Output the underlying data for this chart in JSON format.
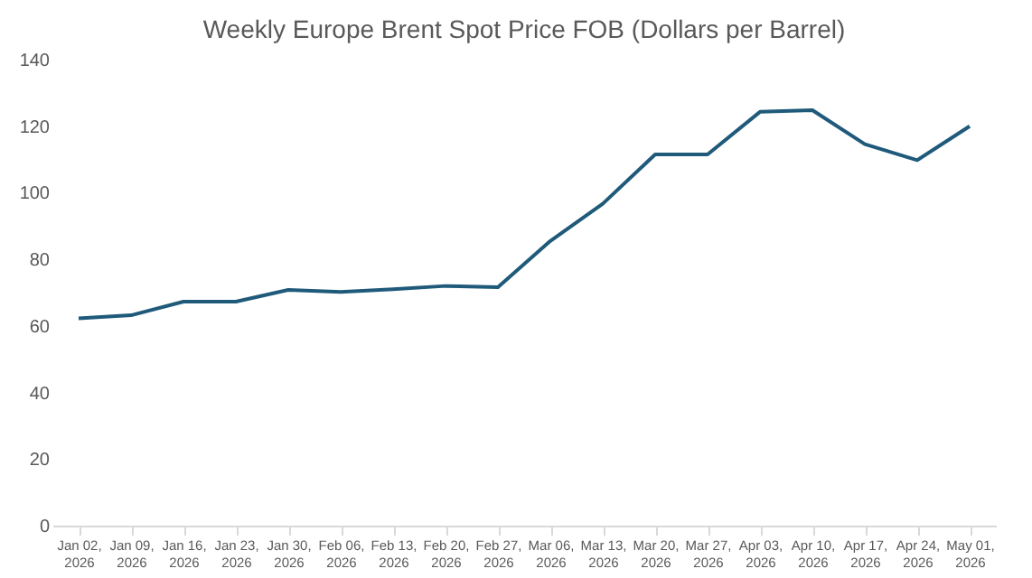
{
  "chart_data": {
    "type": "line",
    "title": "Weekly Europe Brent Spot Price FOB  (Dollars per Barrel)",
    "categories": [
      "Jan 02, 2026",
      "Jan 09, 2026",
      "Jan 16, 2026",
      "Jan 23, 2026",
      "Jan 30, 2026",
      "Feb 06, 2026",
      "Feb 13, 2026",
      "Feb 20, 2026",
      "Feb 27, 2026",
      "Mar 06, 2026",
      "Mar 13, 2026",
      "Mar 20, 2026",
      "Mar 27, 2026",
      "Apr 03, 2026",
      "Apr 10, 2026",
      "Apr 17, 2026",
      "Apr 24, 2026",
      "May 01, 2026"
    ],
    "series": [
      {
        "color": "#1f5a7a",
        "values": [
          62.3,
          63.2,
          67.3,
          67.3,
          70.8,
          70.2,
          71.0,
          72.0,
          71.6,
          85.5,
          96.7,
          111.5,
          111.5,
          124.3,
          124.8,
          114.6,
          109.8,
          120.0
        ]
      }
    ],
    "ylim": [
      0,
      140
    ],
    "yticks": [
      0,
      20,
      40,
      60,
      80,
      100,
      120,
      140
    ],
    "grid": false,
    "marker": "none",
    "line_style": "solid"
  }
}
